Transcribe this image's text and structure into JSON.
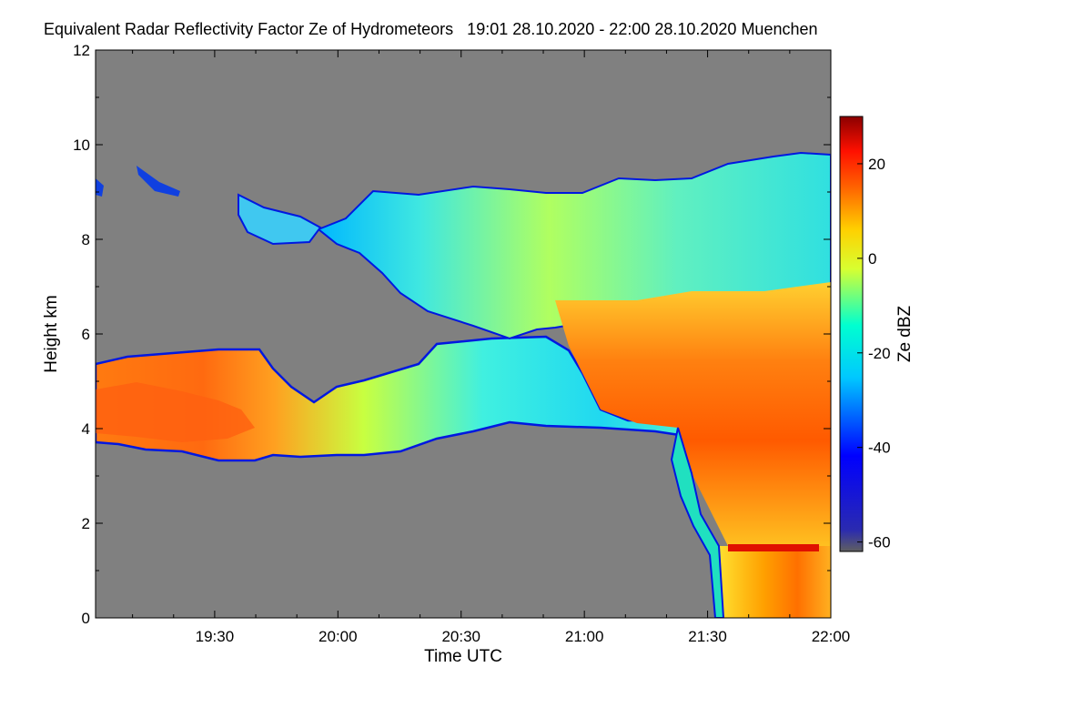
{
  "chart_data": {
    "type": "heatmap",
    "title": "Equivalent Radar Reflectivity Factor Ze of Hydrometeors   19:01 28.10.2020 - 22:00 28.10.2020 Muenchen",
    "xlabel": "Time UTC",
    "ylabel": "Height km",
    "colorbar_label": "Ze dBZ",
    "x_range": [
      "19:01",
      "22:00"
    ],
    "x_ticks": [
      "19:30",
      "20:00",
      "20:30",
      "21:00",
      "21:30",
      "22:00"
    ],
    "ylim": [
      0,
      12
    ],
    "y_ticks": [
      "0",
      "2",
      "4",
      "6",
      "8",
      "10",
      "12"
    ],
    "colorbar_range": [
      -62,
      30
    ],
    "colorbar_ticks": [
      "-60",
      "-40",
      "-20",
      "0",
      "20"
    ],
    "no_data_color": "#808080",
    "colormap": [
      "#3a3aa8",
      "#0000ff",
      "#00bfff",
      "#00ffff",
      "#b0ff50",
      "#ffff00",
      "#ffa000",
      "#ff2000",
      "#8b0000"
    ],
    "features": [
      {
        "name": "lower cloud layer",
        "time_start": "19:01",
        "time_end": "21:10",
        "height_bottom_km": 3.6,
        "height_top_km": 5.5,
        "max_dbz": 15
      },
      {
        "name": "upper cloud layer",
        "time_start": "19:50",
        "time_end": "22:00",
        "height_bottom_km": 6.0,
        "height_top_km": 9.8,
        "max_dbz": 5
      },
      {
        "name": "precipitation",
        "time_start": "21:30",
        "time_end": "22:00",
        "height_bottom_km": 0,
        "height_top_km": 6.5,
        "max_dbz": 20
      }
    ]
  }
}
